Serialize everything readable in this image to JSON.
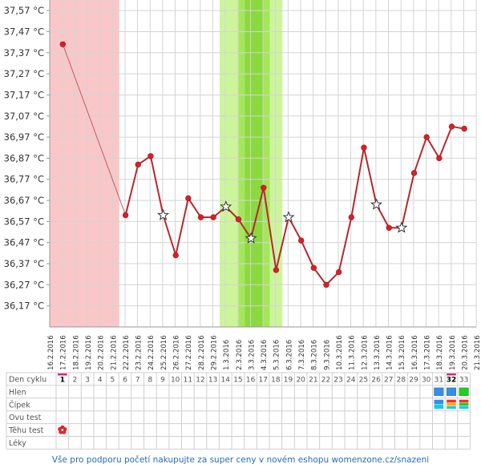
{
  "chart_data": {
    "type": "line",
    "y_labels": [
      "37,57 °C",
      "37,47 °C",
      "37,37 °C",
      "37,27 °C",
      "37,17 °C",
      "37,07 °C",
      "36,97 °C",
      "36,87 °C",
      "36,77 °C",
      "36,67 °C",
      "36,57 °C",
      "36,47 °C",
      "36,37 °C",
      "36,27 °C",
      "36,17 °C"
    ],
    "ylim": [
      36.07,
      37.62
    ],
    "dates": [
      "16.2.2016",
      "17.2.2016",
      "18.2.2016",
      "19.2.2016",
      "20.2.2016",
      "21.2.2016",
      "22.2.2016",
      "23.2.2016",
      "24.2.2016",
      "25.2.2016",
      "26.2.2016",
      "27.2.2016",
      "28.2.2016",
      "29.2.2016",
      "1.3.2016",
      "2.3.2016",
      "3.3.2016",
      "4.3.2016",
      "5.3.2016",
      "6.3.2016",
      "7.3.2016",
      "8.3.2016",
      "9.3.2016",
      "10.3.2016",
      "11.3.2016",
      "12.3.2016",
      "13.3.2016",
      "14.3.2016",
      "15.3.2016",
      "16.3.2016",
      "17.3.2016",
      "18.3.2016",
      "19.3.2016",
      "20.3.2016",
      "21.3.2016"
    ],
    "series": [
      {
        "color": "#b5282f",
        "points": [
          {
            "day": 1,
            "temp": 37.41,
            "marker": "dot"
          },
          {
            "day": 6,
            "temp": 36.6,
            "marker": "dot"
          },
          {
            "day": 7,
            "temp": 36.84,
            "marker": "dot"
          },
          {
            "day": 8,
            "temp": 36.88,
            "marker": "dot"
          },
          {
            "day": 9,
            "temp": 36.6,
            "marker": "star"
          },
          {
            "day": 10,
            "temp": 36.41,
            "marker": "dot"
          },
          {
            "day": 11,
            "temp": 36.68,
            "marker": "dot"
          },
          {
            "day": 12,
            "temp": 36.59,
            "marker": "dot"
          },
          {
            "day": 13,
            "temp": 36.59,
            "marker": "dot"
          },
          {
            "day": 14,
            "temp": 36.64,
            "marker": "star"
          },
          {
            "day": 15,
            "temp": 36.58,
            "marker": "dot"
          },
          {
            "day": 16,
            "temp": 36.49,
            "marker": "star"
          },
          {
            "day": 17,
            "temp": 36.73,
            "marker": "dot"
          },
          {
            "day": 18,
            "temp": 36.34,
            "marker": "dot"
          },
          {
            "day": 19,
            "temp": 36.59,
            "marker": "star"
          },
          {
            "day": 20,
            "temp": 36.48,
            "marker": "dot"
          },
          {
            "day": 21,
            "temp": 36.35,
            "marker": "dot"
          },
          {
            "day": 22,
            "temp": 36.27,
            "marker": "dot"
          },
          {
            "day": 23,
            "temp": 36.33,
            "marker": "dot"
          },
          {
            "day": 24,
            "temp": 36.59,
            "marker": "dot"
          },
          {
            "day": 25,
            "temp": 36.92,
            "marker": "dot"
          },
          {
            "day": 26,
            "temp": 36.65,
            "marker": "star"
          },
          {
            "day": 27,
            "temp": 36.54,
            "marker": "dot"
          },
          {
            "day": 28,
            "temp": 36.54,
            "marker": "star"
          },
          {
            "day": 29,
            "temp": 36.8,
            "marker": "dot"
          },
          {
            "day": 30,
            "temp": 36.97,
            "marker": "dot"
          },
          {
            "day": 31,
            "temp": 36.87,
            "marker": "dot"
          },
          {
            "day": 32,
            "temp": 37.02,
            "marker": "dot"
          },
          {
            "day": 33,
            "temp": 37.01,
            "marker": "dot"
          }
        ]
      }
    ],
    "bands": [
      {
        "from_day": 1,
        "to_day": 5,
        "color": "#f9c7c7"
      },
      {
        "from_day": 14,
        "to_day": 18,
        "color": "#ccf59a"
      },
      {
        "from_day": 15.5,
        "to_day": 17,
        "color": "#a6e65d"
      },
      {
        "from_day": 16,
        "to_day": 16.5,
        "color": "#8ad93e"
      }
    ]
  },
  "table": {
    "row_labels": [
      "Den cyklu",
      "Hlen",
      "Čípek",
      "Ovu test",
      "Těhu test",
      "Léky"
    ],
    "days": [
      "1",
      "2",
      "3",
      "4",
      "5",
      "6",
      "7",
      "8",
      "9",
      "10",
      "11",
      "12",
      "13",
      "14",
      "15",
      "16",
      "17",
      "18",
      "19",
      "20",
      "21",
      "22",
      "23",
      "24",
      "25",
      "26",
      "27",
      "28",
      "29",
      "30",
      "31",
      "32",
      "33"
    ],
    "highlighted_days": [
      "1",
      "32"
    ],
    "highlight_color": "#d6247f",
    "tehu_test_day": "1",
    "hlen": [
      {
        "day": "31",
        "color": "#2e8ff0"
      },
      {
        "day": "32",
        "color": "#2e8ff0"
      },
      {
        "day": "33",
        "color": "#1bd11b"
      }
    ],
    "cipek": [
      {
        "day": "31",
        "colors": [
          "#2e8ff0",
          "#1cc9e8"
        ]
      },
      {
        "day": "32",
        "colors": [
          "#ff2a2a",
          "#f0b400",
          "#1cc9e8"
        ]
      },
      {
        "day": "33",
        "colors": [
          "#ff2a2a",
          "#1bd11b",
          "#1cc9e8"
        ]
      }
    ]
  },
  "footer_text": "Vše pro podporu početí nakupujte za super ceny v novém eshopu womenzone.cz/snazeni"
}
